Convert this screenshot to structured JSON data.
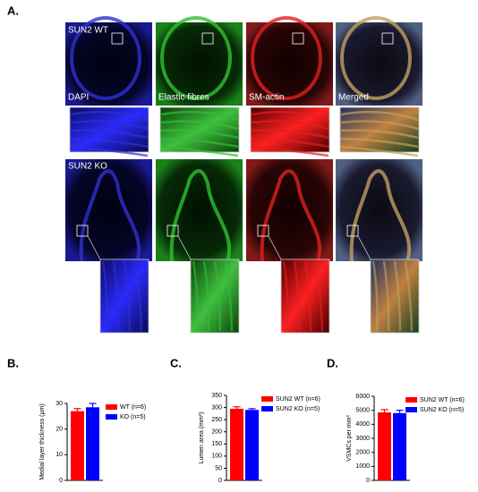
{
  "panel_labels": [
    "A.",
    "B.",
    "C.",
    "D."
  ],
  "image_labels": [
    "SUN2 WT",
    "DAPI",
    "Elastic fibres",
    "SM-actin",
    "Merged",
    "SUN2 KO"
  ],
  "chart_data": [
    {
      "type": "bar",
      "y_label": "Medial layer thickness (µm)",
      "ylim": [
        0,
        30
      ],
      "yticks": [
        0,
        10,
        20,
        30
      ],
      "series": [
        {
          "name": "WT (n=6)",
          "color": "#ff0000",
          "values": [
            27
          ],
          "errors": [
            1
          ]
        },
        {
          "name": "KO (n=5)",
          "color": "#0000ff",
          "values": [
            28.5
          ],
          "errors": [
            1.5
          ]
        }
      ]
    },
    {
      "type": "bar",
      "y_label": "Lumen area (mm²)",
      "ylim": [
        0,
        350
      ],
      "yticks": [
        0,
        50,
        100,
        150,
        200,
        250,
        300,
        350
      ],
      "series": [
        {
          "name": "SUN2 WT (n=6)",
          "color": "#ff0000",
          "values": [
            295
          ],
          "errors": [
            8
          ]
        },
        {
          "name": "SUN2 KO (n=5)",
          "color": "#0000ff",
          "values": [
            290
          ],
          "errors": [
            5
          ]
        }
      ]
    },
    {
      "type": "bar",
      "y_label": "VSMCs per mm²",
      "ylim": [
        0,
        6000
      ],
      "yticks": [
        0,
        1000,
        2000,
        3000,
        4000,
        5000,
        6000
      ],
      "series": [
        {
          "name": "SUN2 WT (n=6)",
          "color": "#ff0000",
          "values": [
            4850
          ],
          "errors": [
            200
          ]
        },
        {
          "name": "SUN2 KO (n=5)",
          "color": "#0000ff",
          "values": [
            4800
          ],
          "errors": [
            200
          ]
        }
      ]
    }
  ]
}
